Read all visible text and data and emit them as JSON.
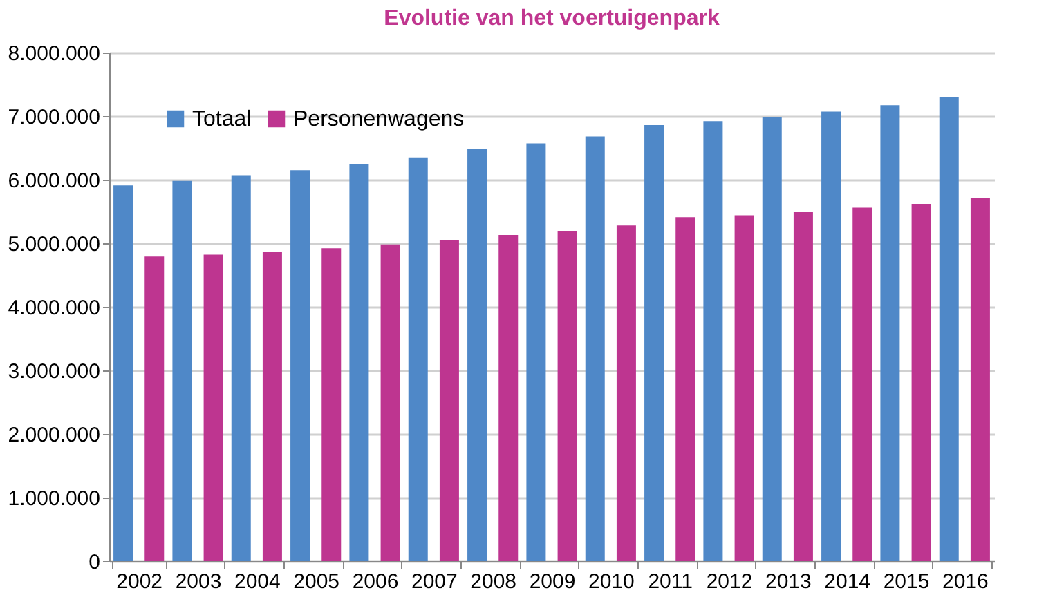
{
  "chart_data": {
    "type": "bar",
    "title": "Evolutie van het voertuigenpark",
    "categories": [
      "2002",
      "2003",
      "2004",
      "2005",
      "2006",
      "2007",
      "2008",
      "2009",
      "2010",
      "2011",
      "2012",
      "2013",
      "2014",
      "2015",
      "2016"
    ],
    "series": [
      {
        "name": "Totaal",
        "color": "#4f88c8",
        "values": [
          5910000,
          5980000,
          6070000,
          6150000,
          6240000,
          6350000,
          6480000,
          6570000,
          6680000,
          6860000,
          6920000,
          6990000,
          7070000,
          7170000,
          7300000
        ]
      },
      {
        "name": "Personenwagens",
        "color": "#be3590",
        "values": [
          4790000,
          4820000,
          4870000,
          4920000,
          4980000,
          5050000,
          5130000,
          5190000,
          5280000,
          5410000,
          5440000,
          5490000,
          5560000,
          5620000,
          5710000
        ]
      }
    ],
    "ylim": [
      0,
      8000000
    ],
    "yticks": [
      {
        "value": 0,
        "label": "0"
      },
      {
        "value": 1000000,
        "label": "1.000.000"
      },
      {
        "value": 2000000,
        "label": "2.000.000"
      },
      {
        "value": 3000000,
        "label": "3.000.000"
      },
      {
        "value": 4000000,
        "label": "4.000.000"
      },
      {
        "value": 5000000,
        "label": "5.000.000"
      },
      {
        "value": 6000000,
        "label": "6.000.000"
      },
      {
        "value": 7000000,
        "label": "7.000.000"
      },
      {
        "value": 8000000,
        "label": "8.000.000"
      }
    ],
    "grid": "y",
    "legend": "top left"
  }
}
